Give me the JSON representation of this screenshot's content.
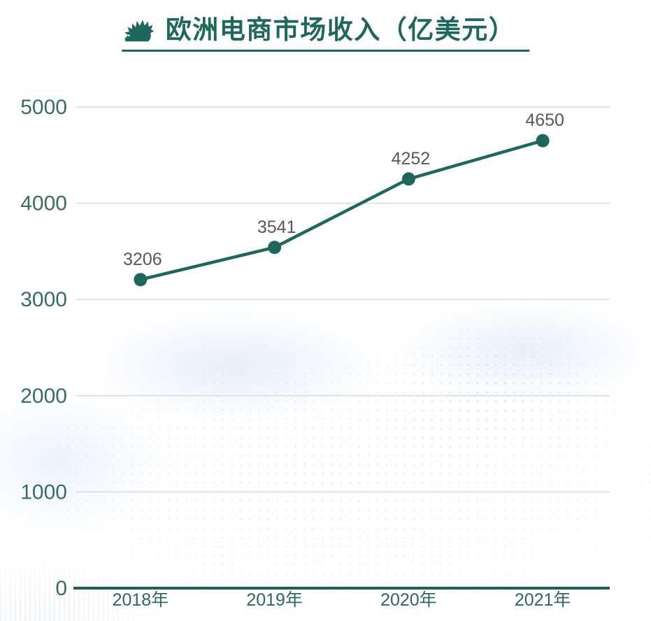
{
  "header": {
    "title": "欧洲电商市场收入（亿美元）",
    "icon": "hedgehog-icon"
  },
  "chart_data": {
    "type": "line",
    "title": "欧洲电商市场收入（亿美元）",
    "categories": [
      "2018年",
      "2019年",
      "2020年",
      "2021年"
    ],
    "series": [
      {
        "name": "欧洲电商市场收入",
        "values": [
          3206,
          3541,
          4252,
          4650
        ]
      }
    ],
    "data_labels": [
      "3206",
      "3541",
      "4252",
      "4650"
    ],
    "xlabel": "",
    "ylabel": "",
    "ylim": [
      0,
      5000
    ],
    "yticks": [
      0,
      1000,
      2000,
      3000,
      4000,
      5000
    ],
    "grid": true,
    "legend": false
  },
  "colors": {
    "primary_teal": "#1d675c",
    "axis_label": "#3a6c62",
    "x_label": "#2d685d",
    "data_label": "#58595b",
    "gridline": "#e1e1e1",
    "axis_line": "#235e52",
    "background": "#ffffff",
    "watermark_blue": "#e7eef9"
  }
}
